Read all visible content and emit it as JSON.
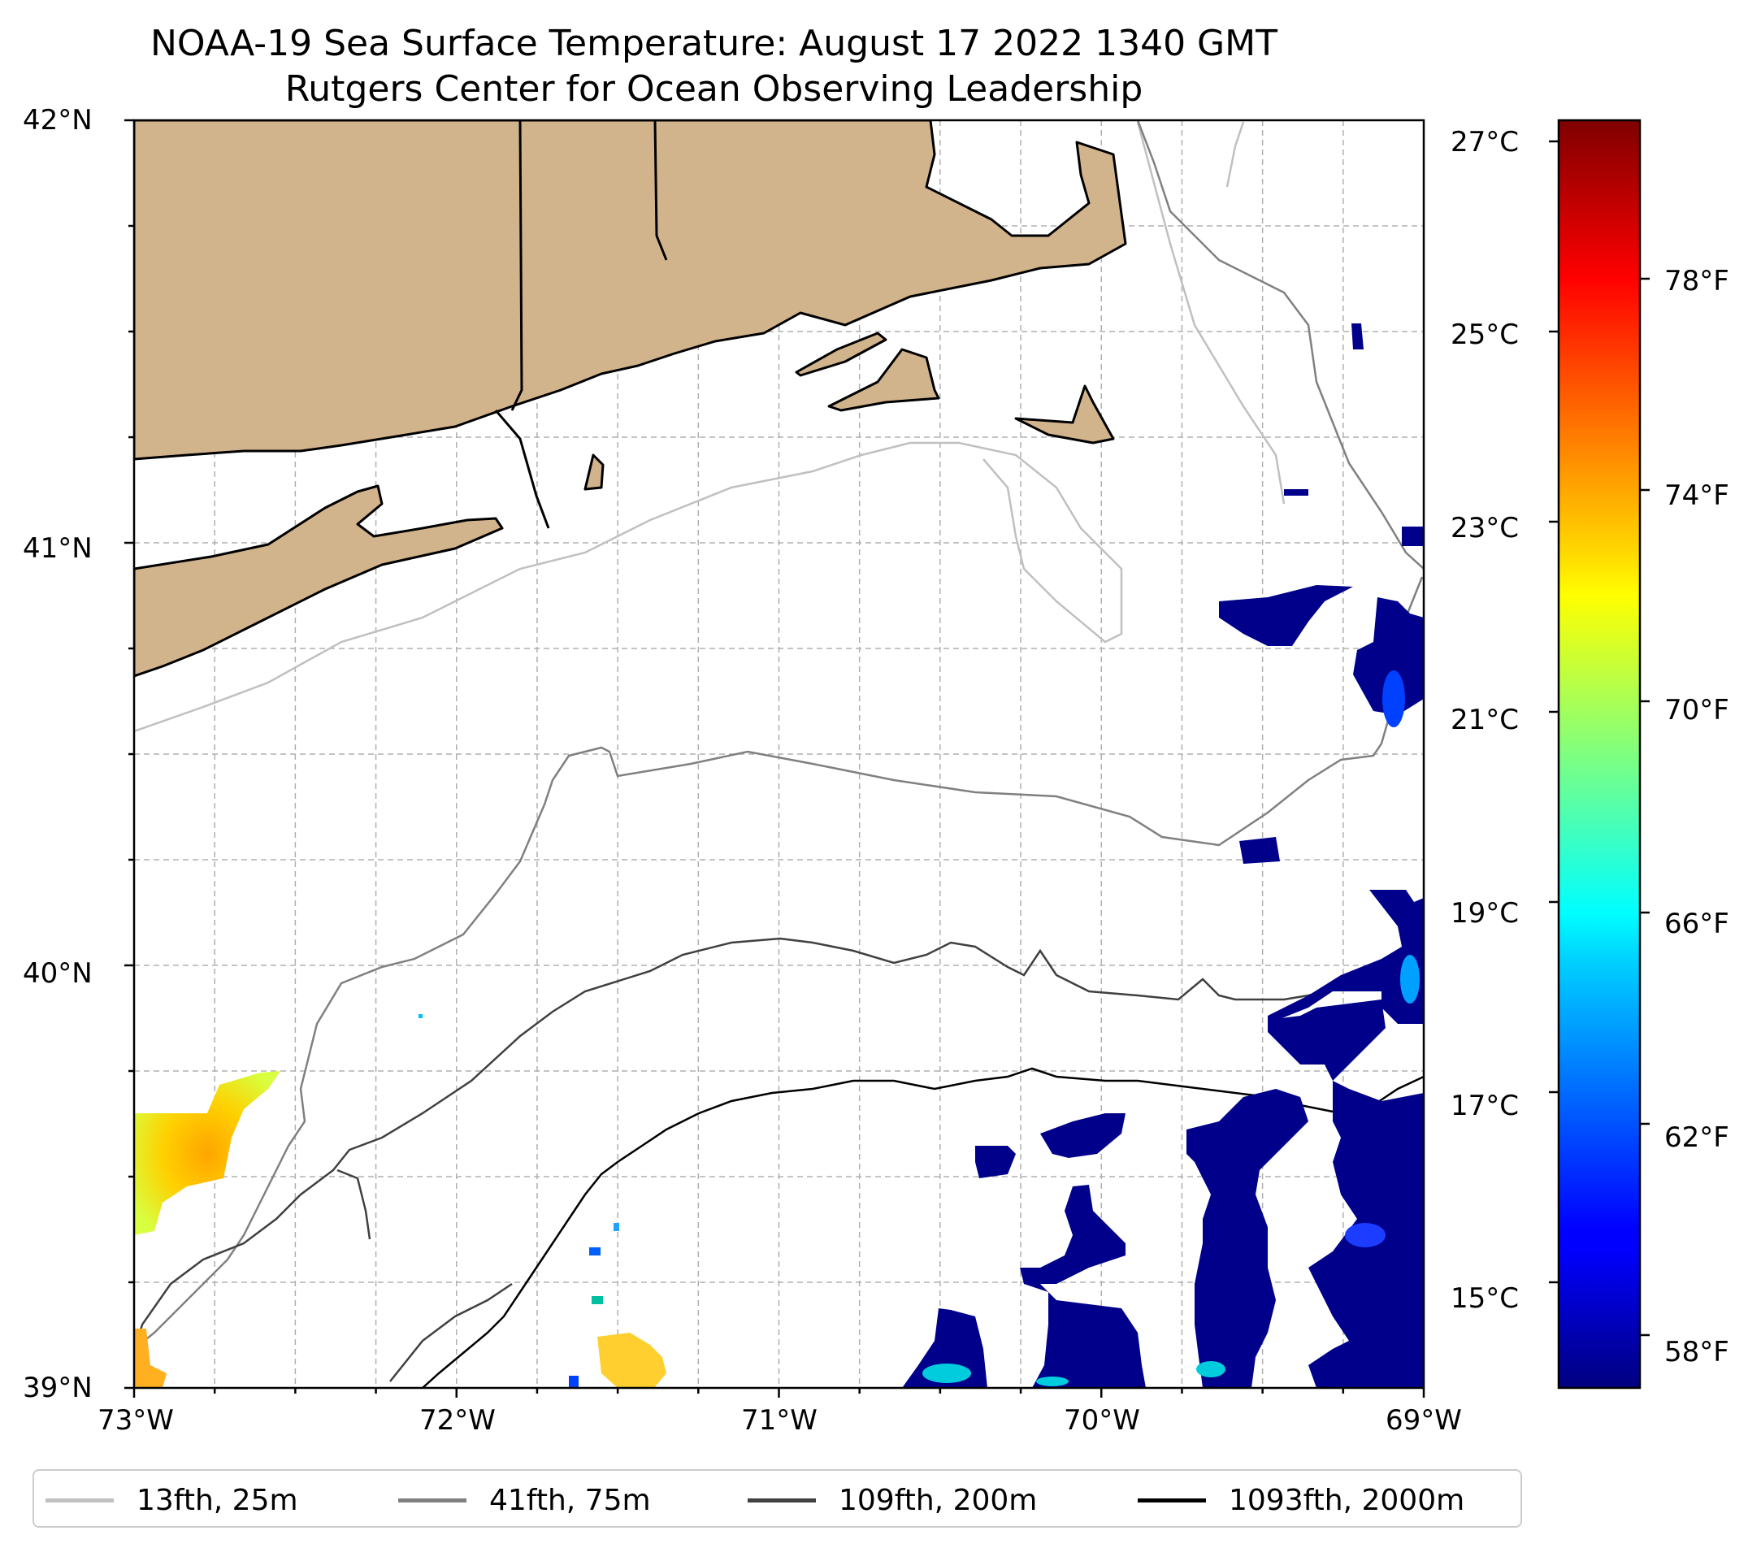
{
  "title": {
    "line1": "NOAA-19 Sea Surface Temperature: August 17 2022 1340 GMT",
    "line2": "Rutgers Center for Ocean Observing Leadership"
  },
  "map": {
    "lon_range": [
      -73,
      -69
    ],
    "lat_range": [
      39,
      42
    ],
    "x_ticks": [
      "73°W",
      "72°W",
      "71°W",
      "70°W",
      "69°W"
    ],
    "y_ticks": [
      "42°N",
      "41°N",
      "40°N",
      "39°N"
    ],
    "gridlines": true,
    "land_color": "#d2b48c",
    "ocean_color": "#ffffff"
  },
  "colorbar": {
    "colormap": "jet",
    "celsius_ticks": [
      "27°C",
      "25°C",
      "23°C",
      "21°C",
      "19°C",
      "17°C",
      "15°C"
    ],
    "fahrenheit_ticks": [
      "78°F",
      "74°F",
      "70°F",
      "66°F",
      "62°F",
      "58°F"
    ],
    "range_f": [
      57,
      81
    ]
  },
  "legend": {
    "placement": "bottom",
    "items": [
      {
        "label": "13fth, 25m",
        "color": "#c0c0c0"
      },
      {
        "label": "41fth, 75m",
        "color": "#808080"
      },
      {
        "label": "109fth, 200m",
        "color": "#404040"
      },
      {
        "label": "1093fth, 2000m",
        "color": "#000000"
      }
    ]
  }
}
